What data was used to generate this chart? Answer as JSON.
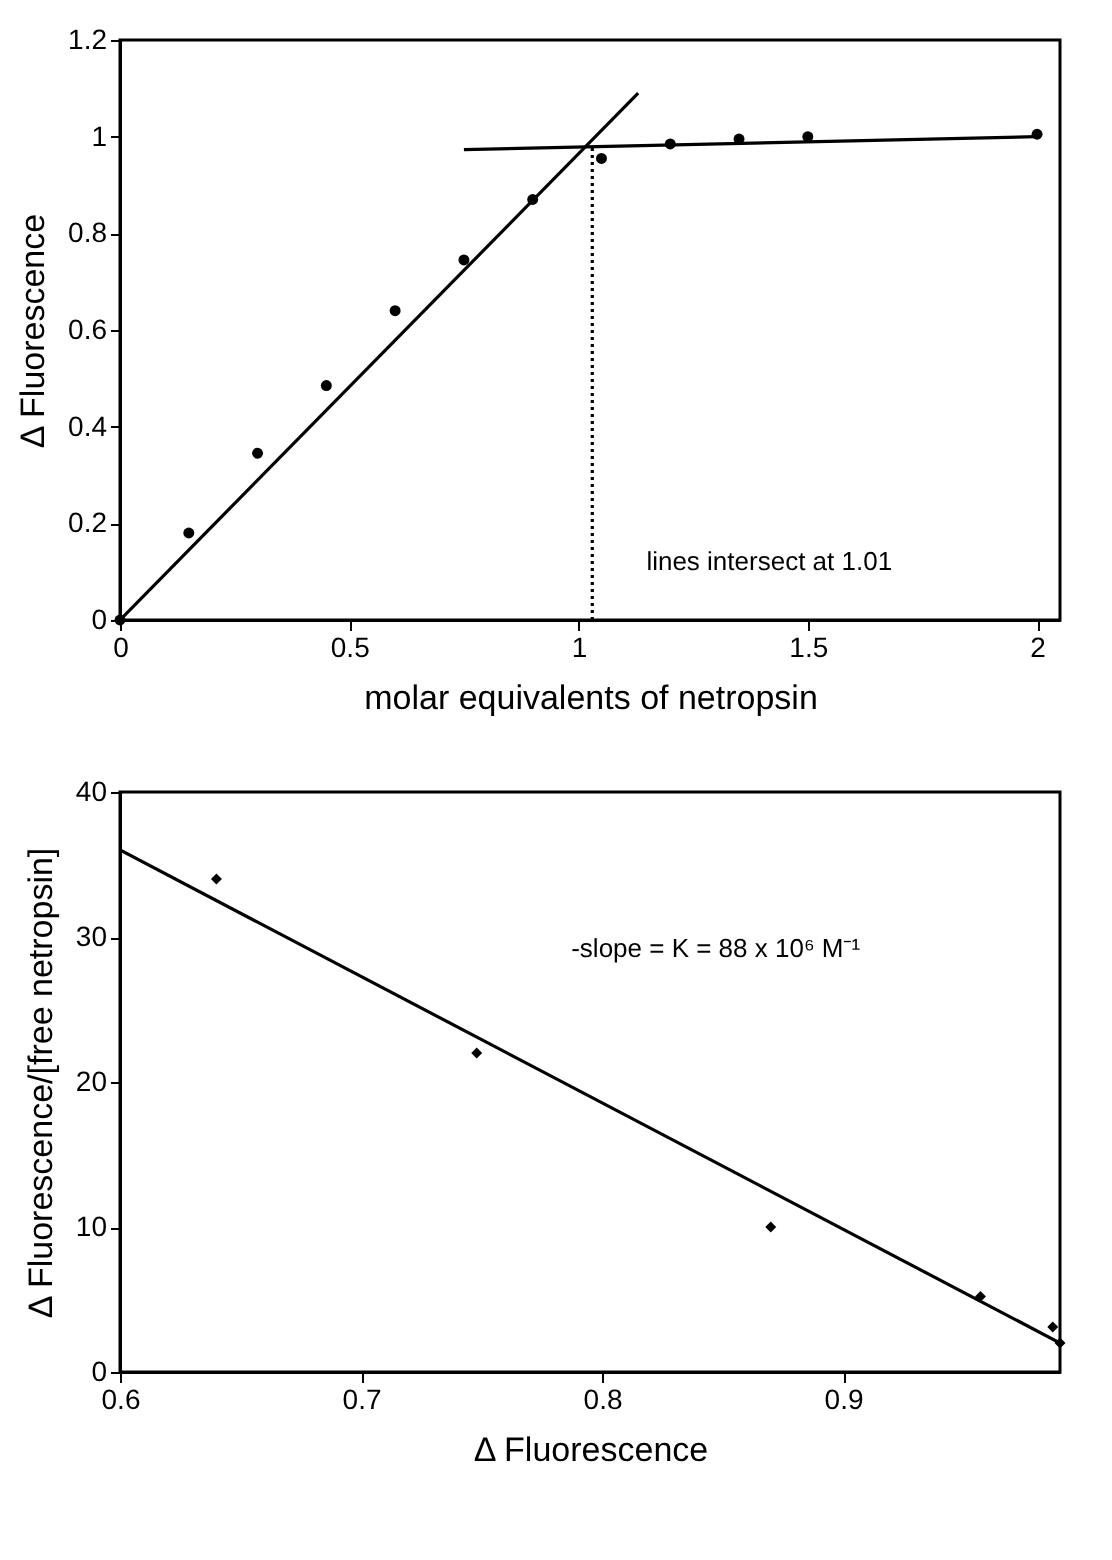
{
  "chart_data": [
    {
      "type": "scatter",
      "xlabel": "molar equivalents of netropsin",
      "ylabel": "Δ Fluorescence",
      "xlim": [
        0,
        2.05
      ],
      "ylim": [
        0,
        1.2
      ],
      "xticks": [
        0,
        0.5,
        1,
        1.5,
        2
      ],
      "yticks": [
        0,
        0.2,
        0.4,
        0.6,
        0.8,
        1,
        1.2
      ],
      "grid": false,
      "legend": false,
      "marker": "circle",
      "annotations": [
        "lines intersect at 1.01"
      ],
      "series": [
        {
          "type": "scatter",
          "color": "#000000",
          "x": [
            0,
            0.15,
            0.3,
            0.45,
            0.6,
            0.75,
            0.9,
            1.05,
            1.2,
            1.35,
            1.5,
            2.0
          ],
          "values": [
            0,
            0.18,
            0.345,
            0.485,
            0.64,
            0.745,
            0.87,
            0.955,
            0.985,
            0.995,
            1.0,
            1.005
          ]
        },
        {
          "type": "line",
          "color": "#000000",
          "line_style": "solid",
          "marker": "none",
          "x": [
            0,
            1.13
          ],
          "values": [
            0,
            1.09
          ]
        },
        {
          "type": "line",
          "color": "#000000",
          "line_style": "solid",
          "marker": "none",
          "x": [
            0.75,
            2.0
          ],
          "values": [
            0.973,
            1.0
          ]
        },
        {
          "type": "line",
          "color": "#000000",
          "line_style": "dotted",
          "marker": "none",
          "x": [
            1.03,
            1.03
          ],
          "values": [
            0,
            0.98
          ]
        }
      ]
    },
    {
      "type": "scatter",
      "xlabel": "Δ Fluorescence",
      "ylabel": "Δ Fluorescence/[free netropsin]",
      "xlim": [
        0.6,
        0.99
      ],
      "ylim": [
        0,
        40
      ],
      "xticks": [
        0.6,
        0.7,
        0.8,
        0.9
      ],
      "yticks": [
        0,
        10,
        20,
        30,
        40
      ],
      "grid": false,
      "legend": false,
      "marker": "diamond",
      "annotations": [
        "-slope = K = 88 x 10⁶ M⁻¹"
      ],
      "series": [
        {
          "type": "scatter",
          "color": "#000000",
          "x": [
            0.64,
            0.748,
            0.87,
            0.957,
            0.987,
            0.99
          ],
          "values": [
            34,
            22,
            10,
            5.2,
            3.1,
            2
          ]
        },
        {
          "type": "line",
          "color": "#000000",
          "line_style": "solid",
          "marker": "none",
          "x": [
            0.6,
            0.99
          ],
          "values": [
            36,
            2
          ]
        }
      ]
    }
  ]
}
